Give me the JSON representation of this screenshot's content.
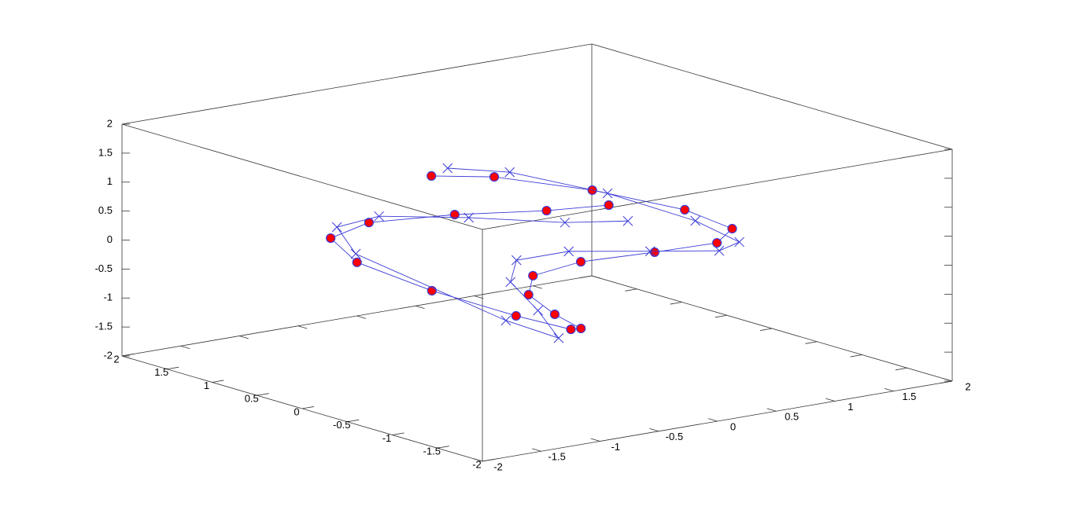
{
  "chart_data": {
    "type": "line3d",
    "xlim": [
      -2,
      2
    ],
    "ylim": [
      -2,
      2
    ],
    "zlim": [
      -2,
      2
    ],
    "xticks": [
      -2,
      -1.5,
      -1,
      -0.5,
      0,
      0.5,
      1,
      1.5,
      2
    ],
    "yticks": [
      -2,
      -1.5,
      -1,
      -0.5,
      0,
      0.5,
      1,
      1.5,
      2
    ],
    "zticks": [
      -2,
      -1.5,
      -1,
      -0.5,
      0,
      0.5,
      1,
      1.5,
      2
    ],
    "series": [
      {
        "marker": "circle",
        "color": "#ff0000",
        "line_color": "#3b3bd6",
        "x": [
          -0.01,
          0.31,
          0.7,
          1.05,
          1.17,
          1.04,
          0.64,
          0.28,
          -0.02,
          -0.18,
          -0.08,
          0.12,
          0.05,
          -0.21,
          -0.52,
          -0.72,
          -0.63,
          -0.35,
          0.15,
          0.61,
          0.94
        ],
        "y": [
          1.16,
          0.88,
          0.3,
          -0.27,
          -0.64,
          -0.64,
          -0.47,
          -0.12,
          0.02,
          -0.14,
          -0.3,
          -0.33,
          -0.31,
          -0.04,
          0.49,
          1.06,
          1.47,
          1.41,
          1.11,
          0.69,
          0.43
        ],
        "z": [
          0.8,
          0.8,
          0.7,
          0.5,
          0.3,
          0.1,
          0.0,
          -0.2,
          -0.4,
          -0.6,
          -0.9,
          -1.2,
          -1.2,
          -1.0,
          -0.7,
          -0.4,
          -0.2,
          0.0,
          0.1,
          0.2,
          0.3
        ]
      },
      {
        "marker": "cross",
        "color": "#3b3bd6",
        "line_color": "#3b3bd6",
        "x": [
          0.22,
          0.48,
          0.83,
          1.01,
          1.07,
          0.96,
          0.74,
          0.3,
          0.07,
          -0.15,
          -0.1,
          -0.07,
          -0.35,
          -0.57,
          -0.5,
          -0.18,
          0.17,
          0.49,
          0.75
        ],
        "y": [
          1.28,
          0.93,
          0.3,
          -0.44,
          -0.85,
          -0.77,
          -0.29,
          0.04,
          0.32,
          0.1,
          -0.14,
          -0.33,
          -0.11,
          1.27,
          1.57,
          1.52,
          0.98,
          0.33,
          -0.03
        ],
        "z": [
          0.8,
          0.8,
          0.6,
          0.4,
          0.2,
          0.05,
          -0.1,
          -0.1,
          -0.3,
          -0.5,
          -0.9,
          -1.3,
          -1.0,
          -0.4,
          -0.1,
          0.0,
          0.1,
          0.2,
          0.3
        ]
      }
    ]
  }
}
